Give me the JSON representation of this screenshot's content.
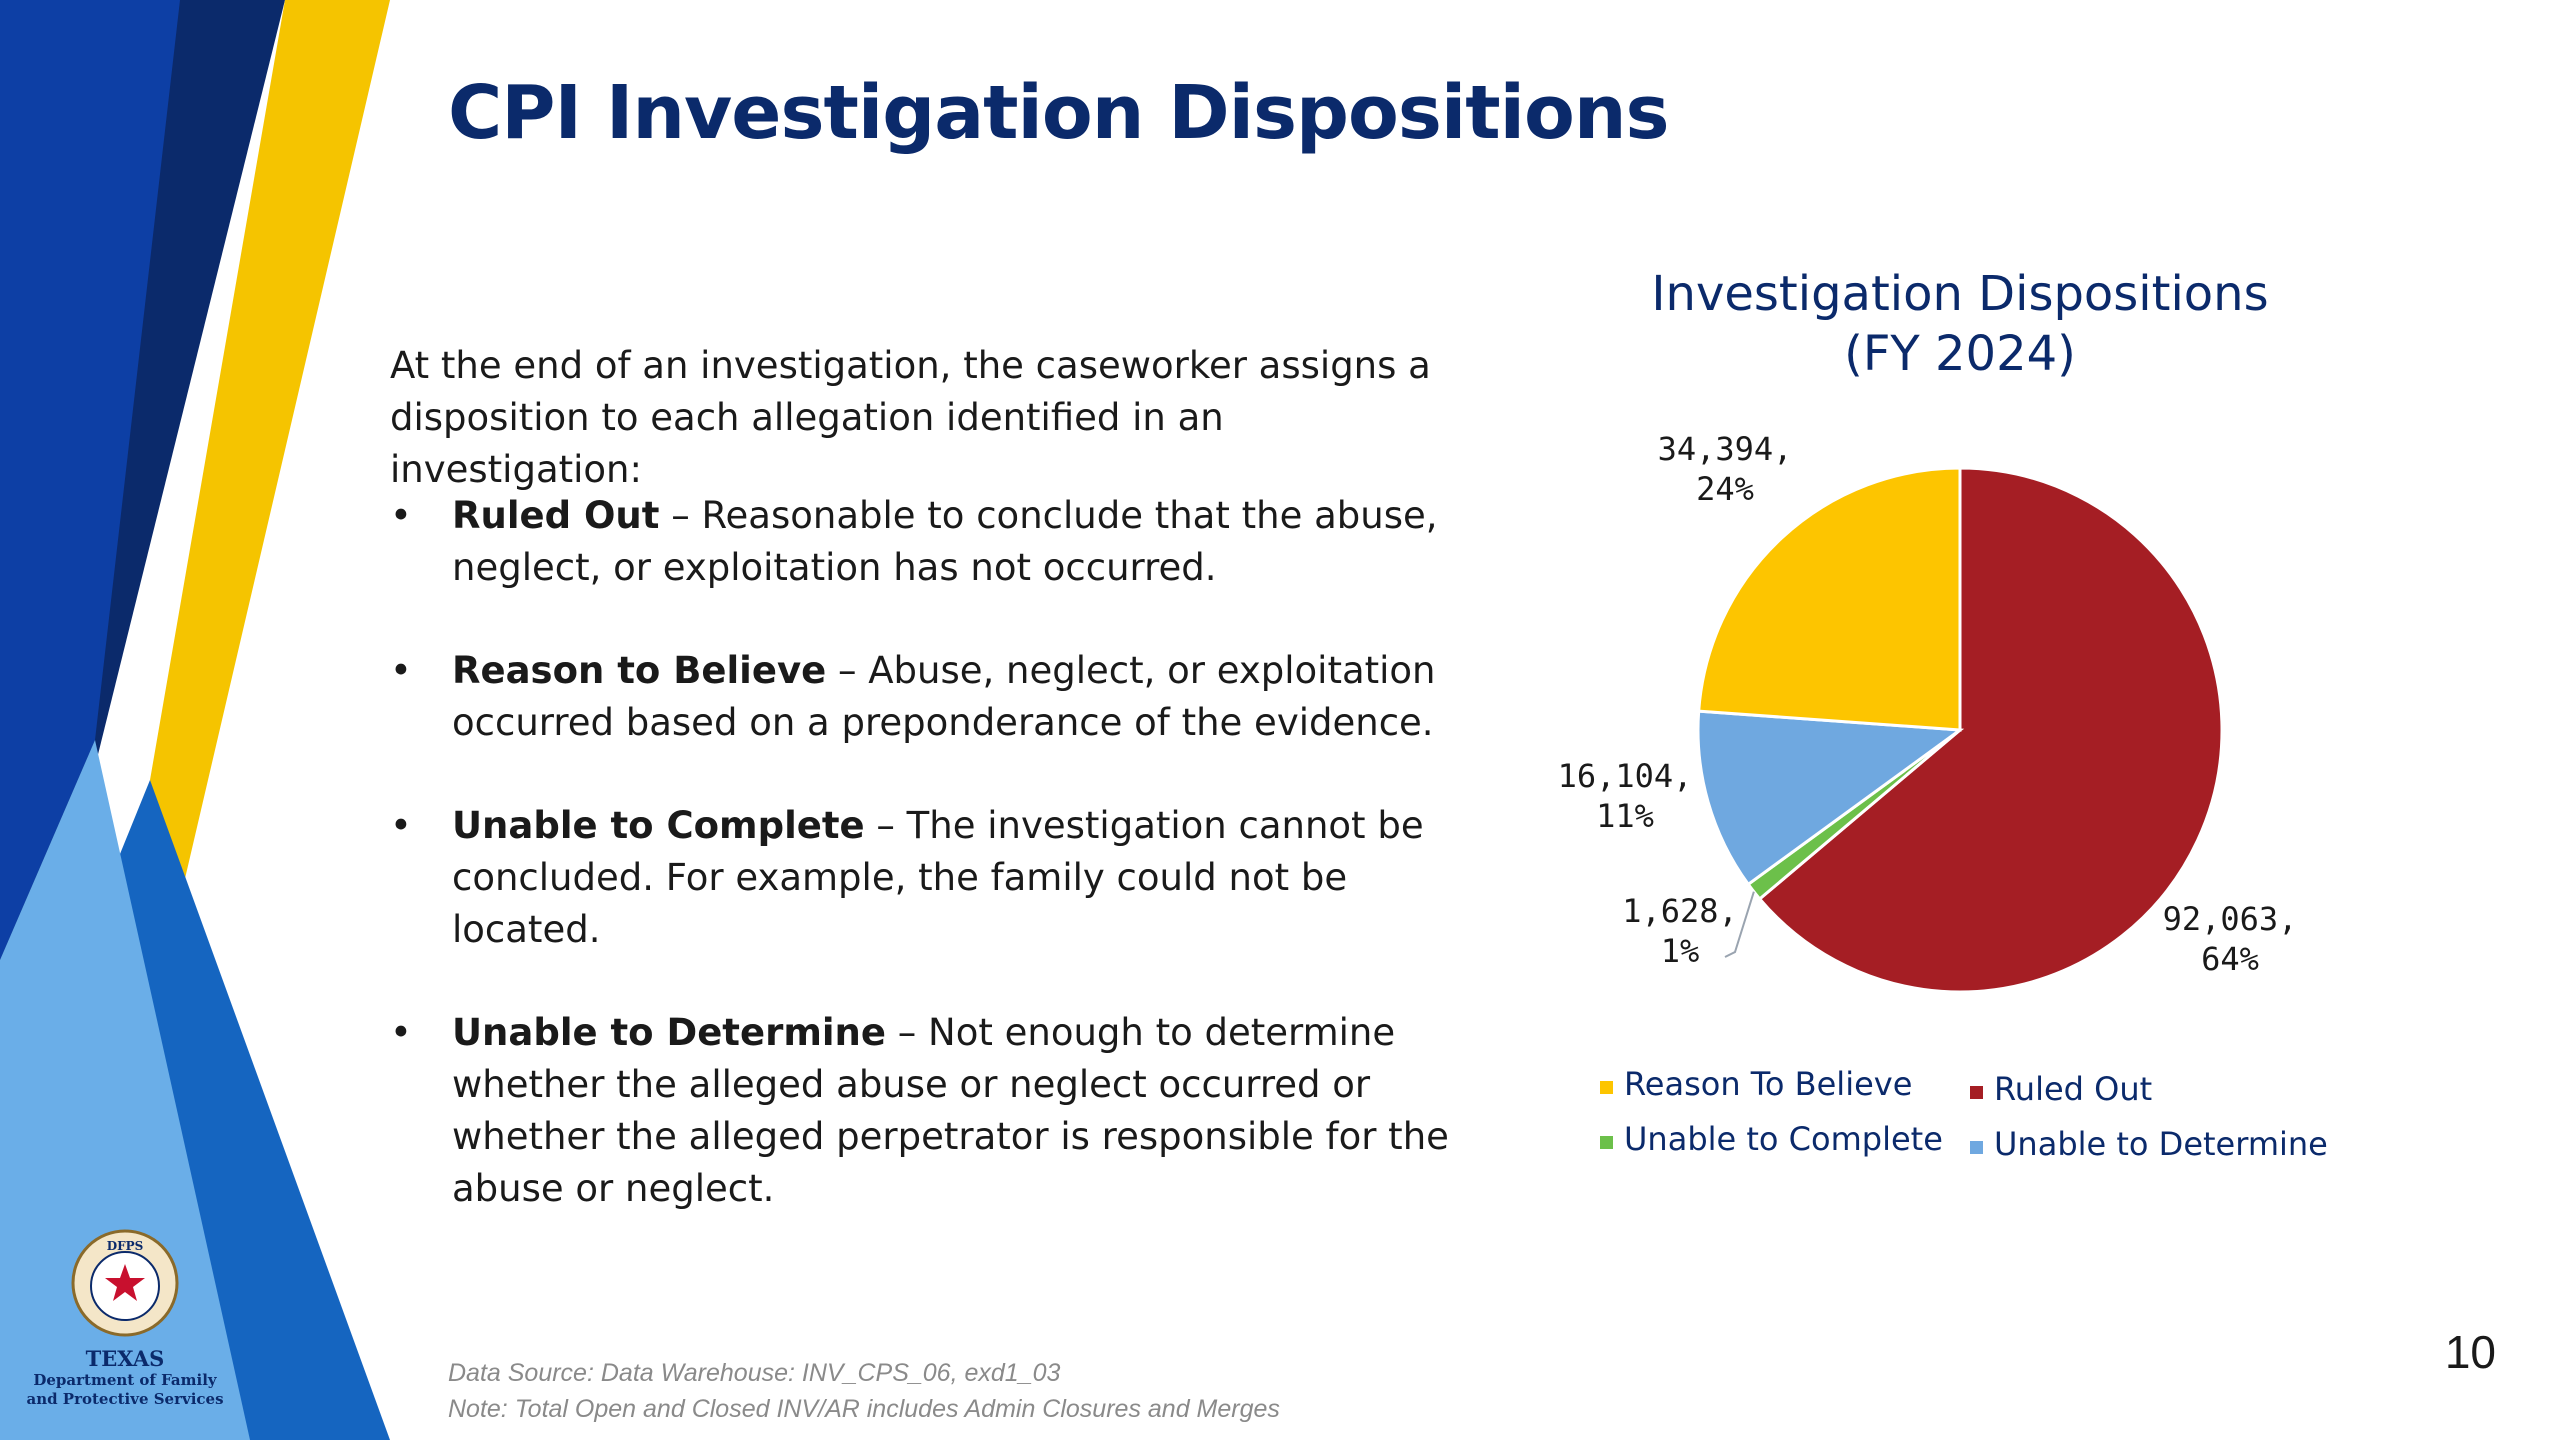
{
  "slide": {
    "title": "CPI Investigation Dispositions",
    "intro": "At the end of an investigation, the caseworker assigns a disposition to each allegation identified in an investigation:",
    "definitions": [
      {
        "term": "Ruled Out",
        "text": " – Reasonable to conclude that the abuse, neglect, or exploitation has not occurred."
      },
      {
        "term": "Reason to Believe",
        "text": " – Abuse, neglect, or exploitation occurred based on a preponderance of the evidence."
      },
      {
        "term": "Unable to Complete",
        "text": " – The investigation cannot be concluded. For example, the family could not be located."
      },
      {
        "term": "Unable to Determine",
        "text": " – Not enough to determine whether the alleged abuse or neglect occurred or whether the alleged perpetrator is responsible for the abuse or neglect."
      }
    ],
    "footnote_source": "Data Source: Data Warehouse: INV_CPS_06, exd1_03",
    "footnote_note": "Note: Total Open and Closed INV/AR includes Admin Closures and Merges",
    "page_number": "10",
    "logo": {
      "seal_text": "DFPS",
      "line1": "TEXAS",
      "line2": "Department of Family",
      "line3": "and Protective Services"
    }
  },
  "colors": {
    "navy": "#0b2a6b",
    "blue": "#0d3fa5",
    "mid_blue": "#1565c0",
    "light_blue": "#6aaee8",
    "yellow": "#f5c400"
  },
  "chart_data": {
    "type": "pie",
    "title_line1": "Investigation Dispositions",
    "title_line2": "(FY 2024)",
    "slices": [
      {
        "name": "Ruled Out",
        "value": 92063,
        "label_value": "92,063,",
        "label_pct": "64%",
        "color": "#a51e24"
      },
      {
        "name": "Unable to Complete",
        "value": 1628,
        "label_value": "1,628,",
        "label_pct": "1%",
        "color": "#6cc04a"
      },
      {
        "name": "Unable to Determine",
        "value": 16104,
        "label_value": "16,104,",
        "label_pct": "11%",
        "color": "#6fa8e0"
      },
      {
        "name": "Reason To Believe",
        "value": 34394,
        "label_value": "34,394,",
        "label_pct": "24%",
        "color": "#fdc500"
      }
    ],
    "legend": [
      {
        "name": "Reason To Believe",
        "color": "#fdc500"
      },
      {
        "name": "Ruled Out",
        "color": "#a51e24"
      },
      {
        "name": "Unable to Complete",
        "color": "#6cc04a"
      },
      {
        "name": "Unable to Determine",
        "color": "#6fa8e0"
      }
    ],
    "legend_placement": "bottom"
  }
}
